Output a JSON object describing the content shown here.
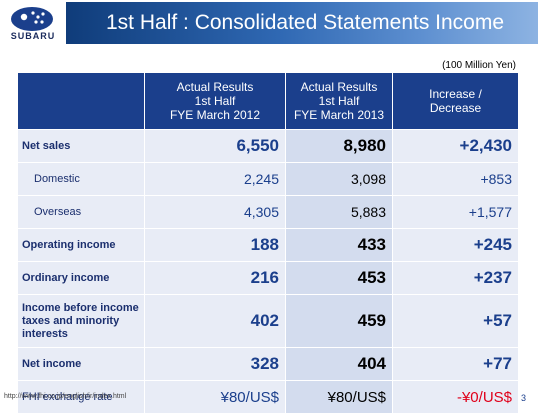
{
  "logo": {
    "text": "SUBARU",
    "icon": "pleiades-star-emblem"
  },
  "title": "1st Half : Consolidated Statements Income",
  "unit": "(100 Million Yen)",
  "table": {
    "headers": [
      "",
      "Actual Results\n1st Half\nFYE March 2012",
      "Actual Results\n1st Half\nFYE March 2013",
      "Increase /\nDecrease"
    ],
    "rows": [
      {
        "label": "Net sales",
        "v2012": "6,550",
        "v2013": "8,980",
        "change": "+2,430"
      },
      {
        "label": "Domestic",
        "v2012": "2,245",
        "v2013": "3,098",
        "change": "+853"
      },
      {
        "label": "Overseas",
        "v2012": "4,305",
        "v2013": "5,883",
        "change": "+1,577"
      },
      {
        "label": "Operating income",
        "v2012": "188",
        "v2013": "433",
        "change": "+245"
      },
      {
        "label": "Ordinary income",
        "v2012": "216",
        "v2013": "453",
        "change": "+237"
      },
      {
        "label": "Income before income taxes and minority interests",
        "v2012": "402",
        "v2013": "459",
        "change": "+57"
      },
      {
        "label": "Net income",
        "v2012": "328",
        "v2013": "404",
        "change": "+77"
      },
      {
        "label": "FHI exchange rate",
        "v2012": "¥80/US$",
        "v2013": "¥80/US$",
        "change": "-¥0/US$"
      }
    ]
  },
  "footer": {
    "url": "http://www.fhi.co.jp/english/ir/index.html",
    "page": "3"
  },
  "colors": {
    "header_blue": "#1b3f8c",
    "row_light": "#e8ecf6",
    "row_mid": "#d3dcee",
    "negative_red": "#e0001a"
  }
}
